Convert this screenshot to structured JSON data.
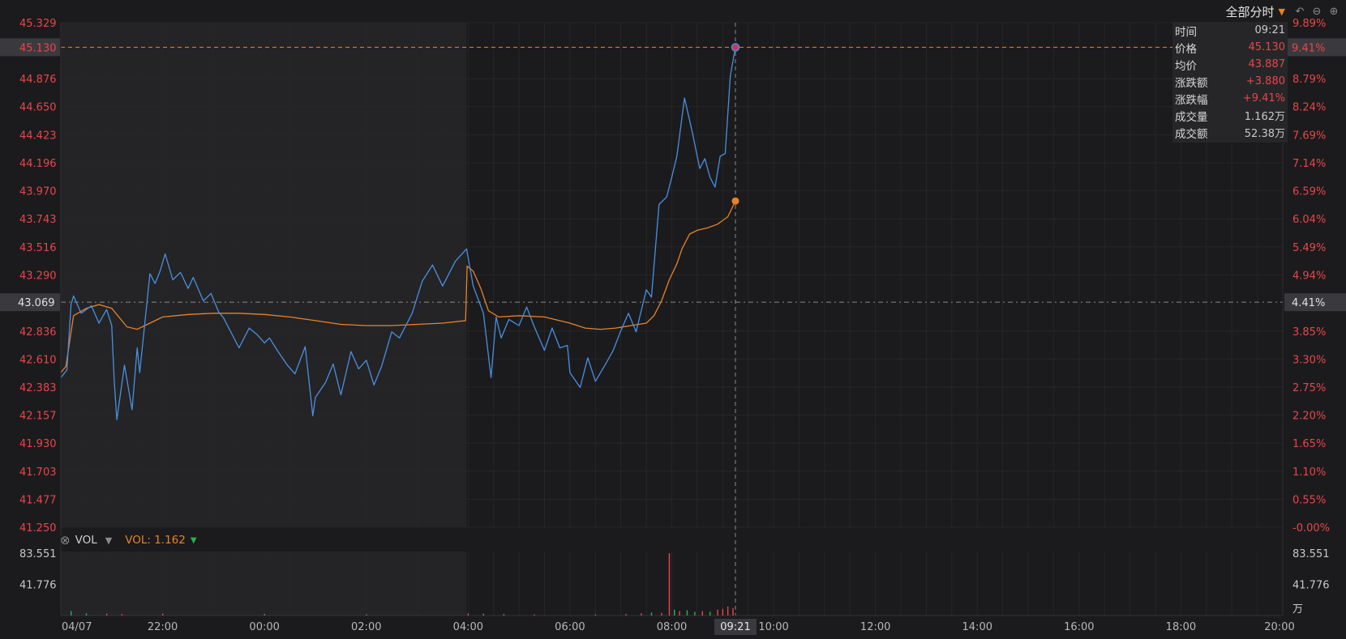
{
  "toolbar": {
    "mode_label": "全部分时",
    "caret_icon": "chevron-down-icon",
    "buttons": [
      "undo-icon",
      "zoom-out-icon",
      "zoom-in-icon"
    ]
  },
  "colors": {
    "price_line": "#4a8fe0",
    "avg_line": "#e8822a",
    "up": "#e8464a",
    "down": "#2bb24c",
    "session_shade": "#242426",
    "background": "#1b1b1d",
    "grid": "#262628"
  },
  "info_panel": {
    "rows": [
      {
        "label": "时间",
        "value": "09:21"
      },
      {
        "label": "价格",
        "value": "45.130"
      },
      {
        "label": "均价",
        "value": "43.887"
      },
      {
        "label": "涨跌额",
        "value": "+3.880"
      },
      {
        "label": "涨跌幅",
        "value": "+9.41%"
      },
      {
        "label": "成交量",
        "value": "1.162万"
      },
      {
        "label": "成交额",
        "value": "52.38万"
      }
    ]
  },
  "volume_header": {
    "indicator": "VOL",
    "value_text": "VOL: 1.162",
    "trend_icon": "triangle-down-icon"
  },
  "crosshair": {
    "price_label": "45.130",
    "pct_label": "9.41%",
    "time_label": "09:21",
    "time": "09:21",
    "price": 45.13
  },
  "chart_data": {
    "type": "line",
    "title": "",
    "xlabel": "",
    "ylabel": "",
    "x_tick_labels": [
      "04/07",
      "22:00",
      "00:00",
      "02:00",
      "04:00",
      "06:00",
      "08:00",
      "10:00",
      "12:00",
      "14:00",
      "16:00",
      "18:00",
      "20:00"
    ],
    "x_tick_hours": [
      20,
      22,
      24,
      26,
      28,
      30,
      32,
      34,
      36,
      38,
      40,
      42,
      44
    ],
    "x_range_hours": [
      20,
      44
    ],
    "y_left_ticks": [
      "45.329",
      "44.876",
      "44.650",
      "44.423",
      "44.196",
      "43.970",
      "43.743",
      "43.516",
      "43.290",
      "42.836",
      "42.610",
      "42.383",
      "42.157",
      "41.930",
      "41.703",
      "41.477",
      "41.250"
    ],
    "y_right_ticks": [
      "9.89%",
      "8.79%",
      "8.24%",
      "7.69%",
      "7.14%",
      "6.59%",
      "6.04%",
      "5.49%",
      "4.94%",
      "3.85%",
      "3.30%",
      "2.75%",
      "2.20%",
      "1.65%",
      "1.10%",
      "0.55%",
      "-0.00%"
    ],
    "y_range": [
      41.25,
      45.329
    ],
    "reference_price": 43.069,
    "reference_pct_label": "4.41%",
    "reference_price_label": "43.069",
    "shaded_session_hours": [
      20,
      27.97
    ],
    "grid": true,
    "series": [
      {
        "x": [
          20.0,
          20.12,
          20.2,
          20.25,
          20.4,
          20.6,
          20.75,
          20.9,
          21.0,
          21.05,
          21.1,
          21.25,
          21.4,
          21.5,
          21.55,
          21.75,
          21.85,
          21.95,
          22.05,
          22.2,
          22.35,
          22.5,
          22.6,
          22.8,
          22.95,
          23.1,
          23.2,
          23.5,
          23.7,
          23.85,
          24.0,
          24.1,
          24.25,
          24.45,
          24.6,
          24.8,
          24.95,
          25.0,
          25.2,
          25.35,
          25.5,
          25.7,
          25.85,
          26.0,
          26.15,
          26.3,
          26.5,
          26.65,
          26.9,
          27.1,
          27.3,
          27.5,
          27.75,
          27.97,
          28.1,
          28.3,
          28.45,
          28.55,
          28.65,
          28.8,
          29.0,
          29.15,
          29.3,
          29.5,
          29.65,
          29.8,
          29.95,
          30.0,
          30.2,
          30.35,
          30.5,
          30.7,
          30.85,
          31.0,
          31.15,
          31.3,
          31.5,
          31.6,
          31.75,
          31.9,
          32.0,
          32.1,
          32.25,
          32.4,
          32.55,
          32.65,
          32.75,
          32.85,
          32.95,
          33.05,
          33.15,
          33.25
        ],
        "y": [
          42.46,
          42.52,
          43.05,
          43.12,
          42.98,
          43.04,
          42.9,
          43.01,
          42.88,
          42.43,
          42.12,
          42.56,
          42.2,
          42.7,
          42.5,
          43.3,
          43.22,
          43.32,
          43.46,
          43.25,
          43.31,
          43.18,
          43.27,
          43.08,
          43.14,
          42.99,
          42.94,
          42.7,
          42.86,
          42.81,
          42.74,
          42.78,
          42.68,
          42.56,
          42.49,
          42.71,
          42.15,
          42.3,
          42.42,
          42.57,
          42.32,
          42.67,
          42.53,
          42.6,
          42.4,
          42.55,
          42.83,
          42.78,
          42.98,
          43.24,
          43.37,
          43.2,
          43.4,
          43.5,
          43.2,
          42.98,
          42.46,
          42.95,
          42.78,
          42.93,
          42.88,
          43.03,
          42.87,
          42.68,
          42.86,
          42.7,
          42.72,
          42.5,
          42.38,
          42.62,
          42.43,
          42.57,
          42.68,
          42.84,
          42.98,
          42.83,
          43.17,
          43.11,
          43.86,
          43.92,
          44.08,
          44.25,
          44.72,
          44.45,
          44.15,
          44.23,
          44.08,
          44.0,
          44.25,
          44.27,
          44.9,
          45.13
        ]
      },
      {
        "x": [
          20.0,
          20.1,
          20.25,
          20.5,
          20.75,
          21.0,
          21.3,
          21.5,
          21.8,
          22.0,
          22.5,
          23.0,
          23.5,
          24.0,
          24.5,
          25.0,
          25.5,
          26.0,
          26.5,
          27.0,
          27.5,
          27.95,
          27.98,
          28.1,
          28.25,
          28.4,
          28.6,
          29.0,
          29.5,
          30.0,
          30.3,
          30.6,
          30.9,
          31.2,
          31.5,
          31.65,
          31.8,
          31.95,
          32.1,
          32.2,
          32.35,
          32.5,
          32.7,
          32.9,
          33.1,
          33.25
        ],
        "y": [
          42.5,
          42.55,
          42.96,
          43.02,
          43.05,
          43.02,
          42.87,
          42.85,
          42.91,
          42.95,
          42.97,
          42.98,
          42.98,
          42.97,
          42.95,
          42.92,
          42.89,
          42.88,
          42.88,
          42.89,
          42.9,
          42.92,
          43.36,
          43.32,
          43.18,
          43.0,
          42.95,
          42.96,
          42.95,
          42.9,
          42.86,
          42.85,
          42.86,
          42.88,
          42.9,
          42.96,
          43.08,
          43.25,
          43.38,
          43.5,
          43.62,
          43.65,
          43.67,
          43.7,
          43.76,
          43.887
        ]
      }
    ],
    "volume": {
      "unit": "万",
      "y_ticks": [
        "83.551",
        "41.776"
      ],
      "y_max": 83.551,
      "bars": [
        {
          "x": 20.2,
          "v": 6,
          "dir": "down"
        },
        {
          "x": 20.5,
          "v": 3,
          "dir": "down"
        },
        {
          "x": 20.9,
          "v": 2.5,
          "dir": "up"
        },
        {
          "x": 21.2,
          "v": 2,
          "dir": "up"
        },
        {
          "x": 22.0,
          "v": 2.5,
          "dir": "up"
        },
        {
          "x": 24.0,
          "v": 2,
          "dir": "down"
        },
        {
          "x": 26.0,
          "v": 1.5,
          "dir": "down"
        },
        {
          "x": 28.0,
          "v": 3,
          "dir": "up"
        },
        {
          "x": 28.3,
          "v": 2.5,
          "dir": "down"
        },
        {
          "x": 28.7,
          "v": 2,
          "dir": "down"
        },
        {
          "x": 29.3,
          "v": 1.5,
          "dir": "up"
        },
        {
          "x": 30.5,
          "v": 1.5,
          "dir": "down"
        },
        {
          "x": 31.1,
          "v": 2,
          "dir": "up"
        },
        {
          "x": 31.4,
          "v": 3,
          "dir": "up"
        },
        {
          "x": 31.6,
          "v": 4,
          "dir": "down"
        },
        {
          "x": 31.8,
          "v": 3.5,
          "dir": "up"
        },
        {
          "x": 31.95,
          "v": 83.551,
          "dir": "up"
        },
        {
          "x": 32.05,
          "v": 8,
          "dir": "down"
        },
        {
          "x": 32.15,
          "v": 6,
          "dir": "up"
        },
        {
          "x": 32.3,
          "v": 7,
          "dir": "down"
        },
        {
          "x": 32.45,
          "v": 5,
          "dir": "down"
        },
        {
          "x": 32.6,
          "v": 6,
          "dir": "up"
        },
        {
          "x": 32.75,
          "v": 5,
          "dir": "down"
        },
        {
          "x": 32.9,
          "v": 8,
          "dir": "up"
        },
        {
          "x": 33.0,
          "v": 9,
          "dir": "up"
        },
        {
          "x": 33.1,
          "v": 12,
          "dir": "up"
        },
        {
          "x": 33.2,
          "v": 10,
          "dir": "up"
        }
      ]
    }
  }
}
